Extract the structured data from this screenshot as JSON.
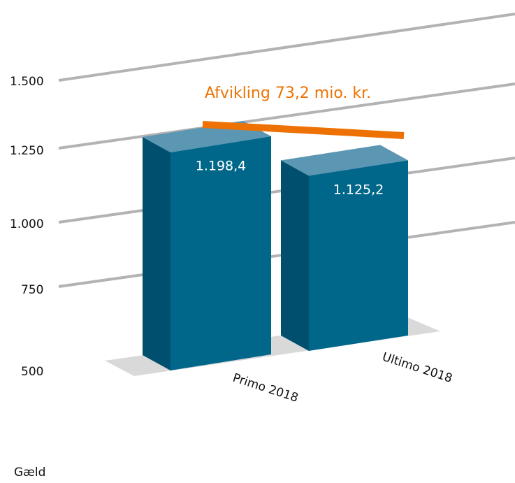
{
  "chart_data": {
    "type": "bar",
    "categories": [
      "Primo 2018",
      "Ultimo 2018"
    ],
    "values": [
      1198.4,
      1125.2
    ],
    "value_labels": [
      "1.198,4",
      "1.125,2"
    ],
    "y_ticks": [
      500,
      750,
      1000,
      1250,
      1500
    ],
    "y_tick_labels": [
      "500",
      "750",
      "1.000",
      "1.250",
      "1.500"
    ],
    "ylim": [
      500,
      1500
    ],
    "grid": true,
    "annotation": "Afvikling 73,2 mio. kr.",
    "series_label": "Gæld",
    "colors": {
      "bar_front": "#00678a",
      "bar_side": "#004f6e",
      "bar_top": "#5b96b3",
      "annotation": "#ee7203",
      "grid": "#b3b3b3",
      "floor": "#d9d9d9"
    }
  }
}
